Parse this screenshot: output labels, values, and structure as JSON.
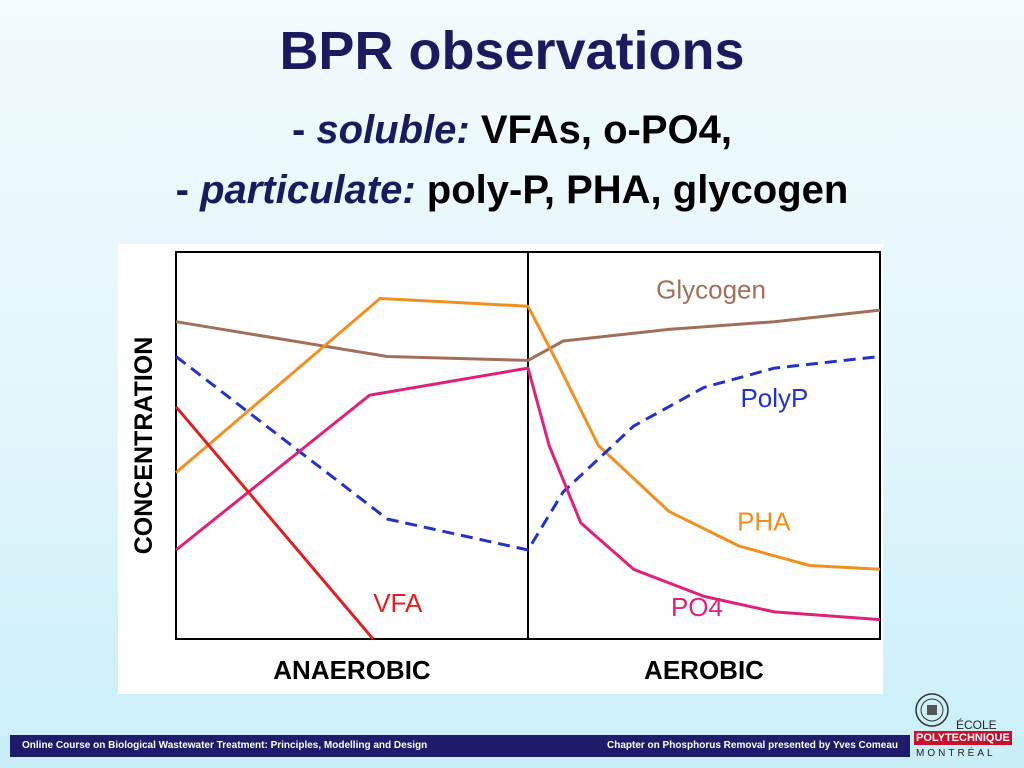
{
  "slide": {
    "title": "BPR observations",
    "line2_prefix": "- ",
    "line2_em": "soluble:",
    "line2_rest": " VFAs, o-PO4,",
    "line3_prefix": "- ",
    "line3_em": "particulate:",
    "line3_rest": " poly-P, PHA, glycogen"
  },
  "footer": {
    "left": "Online Course on Biological Wastewater Treatment: Principles, Modelling and Design",
    "right": "Chapter on Phosphorus Removal presented by Yves Comeau"
  },
  "logo": {
    "line1": "ÉCOLE",
    "line2": "POLYTECHNIQUE",
    "line3": "MONTRÉAL"
  },
  "chart_data": {
    "type": "line",
    "ylabel": "CONCENTRATION",
    "x_range": [
      0,
      2
    ],
    "y_range": [
      0,
      1
    ],
    "phases": [
      {
        "label": "ANAEROBIC",
        "x_start": 0,
        "x_end": 1
      },
      {
        "label": "AEROBIC",
        "x_start": 1,
        "x_end": 2
      }
    ],
    "phase_divider_x": 1,
    "series": [
      {
        "name": "Glycogen",
        "color": "#a0705a",
        "dash": false,
        "points": [
          [
            0,
            0.82
          ],
          [
            0.6,
            0.73
          ],
          [
            1.0,
            0.72
          ],
          [
            1.1,
            0.77
          ],
          [
            1.4,
            0.8
          ],
          [
            1.7,
            0.82
          ],
          [
            2.0,
            0.85
          ]
        ]
      },
      {
        "name": "PHA",
        "color": "#f09020",
        "dash": false,
        "points": [
          [
            0,
            0.43
          ],
          [
            0.58,
            0.88
          ],
          [
            1.0,
            0.86
          ],
          [
            1.08,
            0.72
          ],
          [
            1.2,
            0.5
          ],
          [
            1.4,
            0.33
          ],
          [
            1.6,
            0.24
          ],
          [
            1.8,
            0.19
          ],
          [
            2.0,
            0.18
          ]
        ]
      },
      {
        "name": "PolyP",
        "color": "#2233cc",
        "dash": true,
        "points": [
          [
            0,
            0.73
          ],
          [
            0.6,
            0.31
          ],
          [
            1.0,
            0.23
          ],
          [
            1.1,
            0.38
          ],
          [
            1.3,
            0.55
          ],
          [
            1.5,
            0.65
          ],
          [
            1.7,
            0.7
          ],
          [
            2.0,
            0.73
          ]
        ]
      },
      {
        "name": "PO4",
        "color": "#e0207a",
        "dash": false,
        "points": [
          [
            0,
            0.23
          ],
          [
            0.55,
            0.63
          ],
          [
            1.0,
            0.7
          ],
          [
            1.06,
            0.5
          ],
          [
            1.15,
            0.3
          ],
          [
            1.3,
            0.18
          ],
          [
            1.5,
            0.11
          ],
          [
            1.7,
            0.07
          ],
          [
            2.0,
            0.05
          ]
        ]
      },
      {
        "name": "VFA",
        "color": "#e02020",
        "dash": false,
        "points": [
          [
            0,
            0.6
          ],
          [
            0.56,
            0.0
          ]
        ]
      }
    ]
  }
}
